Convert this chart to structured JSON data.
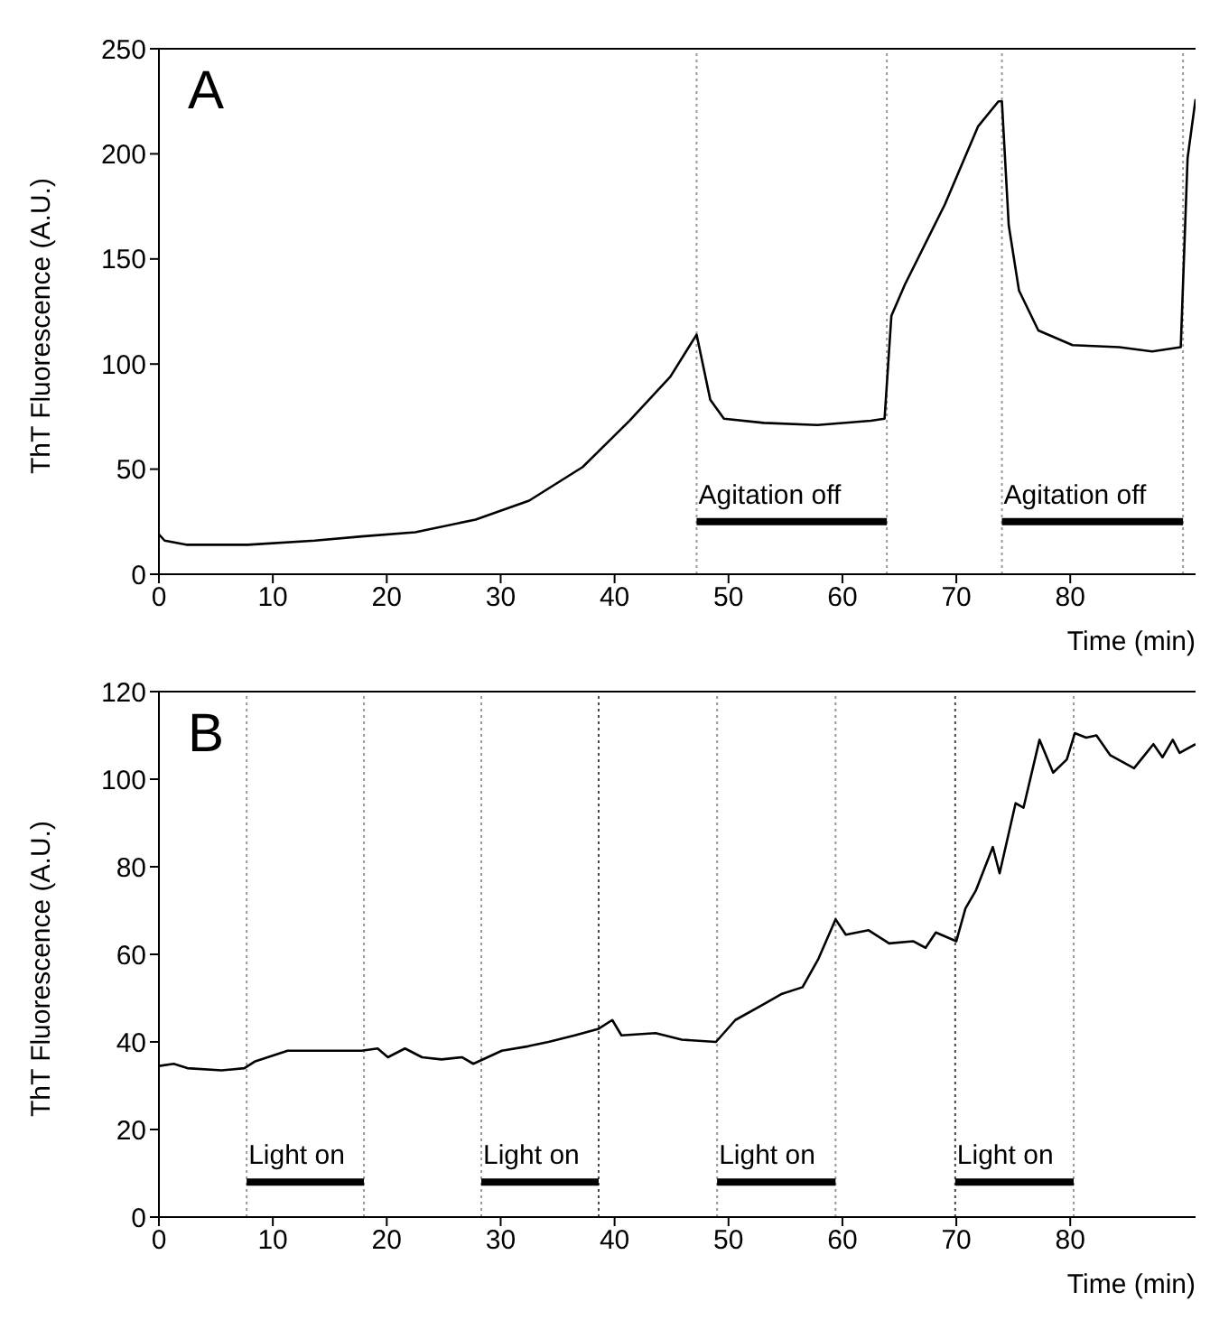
{
  "chart_data": [
    {
      "type": "line",
      "title": "A",
      "xlabel": "Time (min)",
      "ylabel": "ThT Fluorescence (A.U.)",
      "xlim": [
        0,
        91
      ],
      "xticks": [
        0,
        10,
        20,
        30,
        40,
        50,
        60,
        70,
        80
      ],
      "ylim": [
        0,
        250
      ],
      "yticks": [
        0,
        50,
        100,
        150,
        200,
        250
      ],
      "grid": false,
      "legend": false,
      "marker": "none",
      "line_style": "solid",
      "series": [
        {
          "color": "#000000",
          "x": [
            0,
            0.5,
            2.5,
            7.8,
            13.7,
            17.8,
            22.5,
            27.8,
            32.5,
            37.2,
            41.3,
            44.9,
            47.2,
            48.4,
            49.6,
            53.1,
            57.8,
            62.5,
            63.7,
            64.3,
            65.5,
            69,
            71.9,
            73.7,
            74,
            74.6,
            75.5,
            77.2,
            80.2,
            84.3,
            87.2,
            89.7,
            90.3,
            91
          ],
          "values": [
            19,
            16,
            14,
            14,
            16,
            18,
            20,
            26,
            35,
            51,
            73,
            94,
            114,
            83,
            74,
            72,
            71,
            73,
            74,
            123,
            138,
            176,
            213,
            225,
            225,
            166,
            135,
            116,
            109,
            108,
            106,
            108,
            198,
            226
          ]
        },
        {
          "name": "Agitation off",
          "color": "#000000",
          "x": [
            47.2,
            63.9
          ],
          "values": [
            25,
            25
          ]
        },
        {
          "name": "Agitation off",
          "color": "#000000",
          "x": [
            74,
            89.9
          ],
          "values": [
            25,
            25
          ]
        }
      ],
      "ref_lines": [
        {
          "axis": "x",
          "value": 47.2,
          "color": "#999999",
          "line_style": "dotted"
        },
        {
          "axis": "x",
          "value": 63.9,
          "color": "#999999",
          "line_style": "dotted"
        },
        {
          "axis": "x",
          "value": 74,
          "color": "#999999",
          "line_style": "dotted"
        },
        {
          "axis": "x",
          "value": 89.9,
          "color": "#999999",
          "line_style": "dotted"
        }
      ]
    },
    {
      "type": "line",
      "title": "B",
      "xlabel": "Time (min)",
      "ylabel": "ThT Fluorescence (A.U.)",
      "xlim": [
        0,
        91
      ],
      "xticks": [
        0,
        10,
        20,
        30,
        40,
        50,
        60,
        70,
        80
      ],
      "ylim": [
        0,
        120
      ],
      "yticks": [
        0,
        20,
        40,
        60,
        80,
        100,
        120
      ],
      "grid": false,
      "legend": false,
      "marker": "none",
      "line_style": "solid",
      "series": [
        {
          "color": "#000000",
          "x": [
            0,
            1.3,
            2.5,
            5.5,
            7.5,
            8.4,
            11.3,
            14.3,
            17.8,
            19.2,
            20.1,
            21.6,
            23.1,
            24.8,
            26.6,
            27.6,
            30.1,
            32.4,
            34.2,
            36.5,
            38.6,
            39.8,
            40.6,
            43.6,
            45.9,
            48.9,
            50.6,
            53,
            54.7,
            56.5,
            57.9,
            59.4,
            60.3,
            62.3,
            64.1,
            66.2,
            67.3,
            68.2,
            70,
            70.8,
            71.7,
            73.2,
            73.8,
            75.2,
            75.9,
            77.3,
            78.5,
            79.7,
            80.4,
            81.4,
            82.3,
            83.5,
            85.6,
            87.3,
            88.1,
            89,
            89.6,
            91
          ],
          "values": [
            34.5,
            35,
            34,
            33.5,
            34,
            35.5,
            38,
            38,
            38,
            38.5,
            36.5,
            38.5,
            36.5,
            36,
            36.5,
            35,
            38,
            39,
            40,
            41.5,
            43,
            45,
            41.5,
            42,
            40.5,
            40,
            45,
            48.5,
            51,
            52.5,
            59,
            68,
            64.5,
            65.5,
            62.5,
            63,
            61.5,
            65,
            63,
            70.5,
            74.5,
            84.5,
            78.5,
            94.5,
            93.5,
            109,
            101.5,
            104.5,
            110.5,
            109.5,
            110,
            105.5,
            102.5,
            108,
            105,
            109,
            106,
            108
          ]
        },
        {
          "name": "Light on",
          "color": "#000000",
          "x": [
            7.7,
            18
          ],
          "values": [
            8,
            8
          ]
        },
        {
          "name": "Light on",
          "color": "#000000",
          "x": [
            28.3,
            38.6
          ],
          "values": [
            8,
            8
          ]
        },
        {
          "name": "Light on",
          "color": "#000000",
          "x": [
            49,
            59.4
          ],
          "values": [
            8,
            8
          ]
        },
        {
          "name": "Light on",
          "color": "#000000",
          "x": [
            69.9,
            80.3
          ],
          "values": [
            8,
            8
          ]
        }
      ],
      "ref_lines": [
        {
          "axis": "x",
          "value": 7.7,
          "color": "#999999",
          "line_style": "dotted"
        },
        {
          "axis": "x",
          "value": 18,
          "color": "#999999",
          "line_style": "dotted"
        },
        {
          "axis": "x",
          "value": 28.3,
          "color": "#999999",
          "line_style": "dotted"
        },
        {
          "axis": "x",
          "value": 38.6,
          "color": "#444444",
          "line_style": "dotted"
        },
        {
          "axis": "x",
          "value": 49,
          "color": "#999999",
          "line_style": "dotted"
        },
        {
          "axis": "x",
          "value": 59.4,
          "color": "#999999",
          "line_style": "dotted"
        },
        {
          "axis": "x",
          "value": 69.9,
          "color": "#444444",
          "line_style": "dotted"
        },
        {
          "axis": "x",
          "value": 80.3,
          "color": "#999999",
          "line_style": "dotted"
        }
      ]
    }
  ]
}
